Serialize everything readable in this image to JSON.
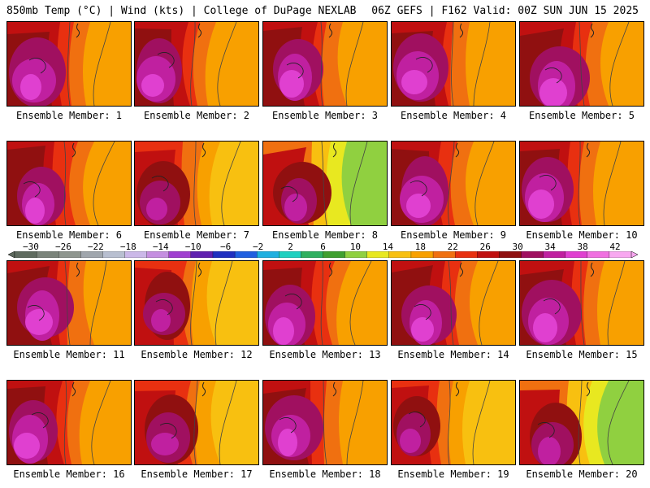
{
  "header": {
    "left": "850mb Temp (°C) | Wind (kts) | College of DuPage NEXLAB",
    "right": "06Z GEFS | F162 Valid: 00Z SUN JUN 15 2025"
  },
  "colorbar": {
    "ticks": [
      "−30",
      "−26",
      "−22",
      "−18",
      "−14",
      "−10",
      "−6",
      "−2",
      "2",
      "6",
      "10",
      "14",
      "18",
      "22",
      "26",
      "30",
      "34",
      "38",
      "42"
    ],
    "colors": [
      "#5f6b5f",
      "#7a837a",
      "#8f968f",
      "#a0a6ad",
      "#b8bfd0",
      "#cbb8e8",
      "#c58fe0",
      "#a040d0",
      "#6020b0",
      "#2030c0",
      "#2060e0",
      "#20b0e0",
      "#20d0c0",
      "#30b060",
      "#40a030",
      "#90d040",
      "#e8e820",
      "#f8c010",
      "#f8a000",
      "#f07010",
      "#e83010",
      "#c01010",
      "#901010",
      "#a01060",
      "#c020a0",
      "#e040d0",
      "#f070e0",
      "#f8a8f0"
    ],
    "levels": [
      -32,
      -30,
      -28,
      -26,
      -24,
      -22,
      -20,
      -18,
      -16,
      -14,
      -12,
      -10,
      -8,
      -6,
      -4,
      -2,
      0,
      2,
      4,
      6,
      8,
      10,
      12,
      14,
      16,
      18,
      20,
      22,
      24,
      26,
      28,
      30,
      32,
      34,
      36,
      38,
      40,
      42,
      44
    ]
  },
  "members": [
    {
      "label": "Ensemble Member: 1"
    },
    {
      "label": "Ensemble Member: 2"
    },
    {
      "label": "Ensemble Member: 3"
    },
    {
      "label": "Ensemble Member: 4"
    },
    {
      "label": "Ensemble Member: 5"
    },
    {
      "label": "Ensemble Member: 6"
    },
    {
      "label": "Ensemble Member: 7"
    },
    {
      "label": "Ensemble Member: 8"
    },
    {
      "label": "Ensemble Member: 9"
    },
    {
      "label": "Ensemble Member: 10"
    },
    {
      "label": "Ensemble Member: 11"
    },
    {
      "label": "Ensemble Member: 12"
    },
    {
      "label": "Ensemble Member: 13"
    },
    {
      "label": "Ensemble Member: 14"
    },
    {
      "label": "Ensemble Member: 15"
    },
    {
      "label": "Ensemble Member: 16"
    },
    {
      "label": "Ensemble Member: 17"
    },
    {
      "label": "Ensemble Member: 18"
    },
    {
      "label": "Ensemble Member: 19"
    },
    {
      "label": "Ensemble Member: 20"
    }
  ]
}
